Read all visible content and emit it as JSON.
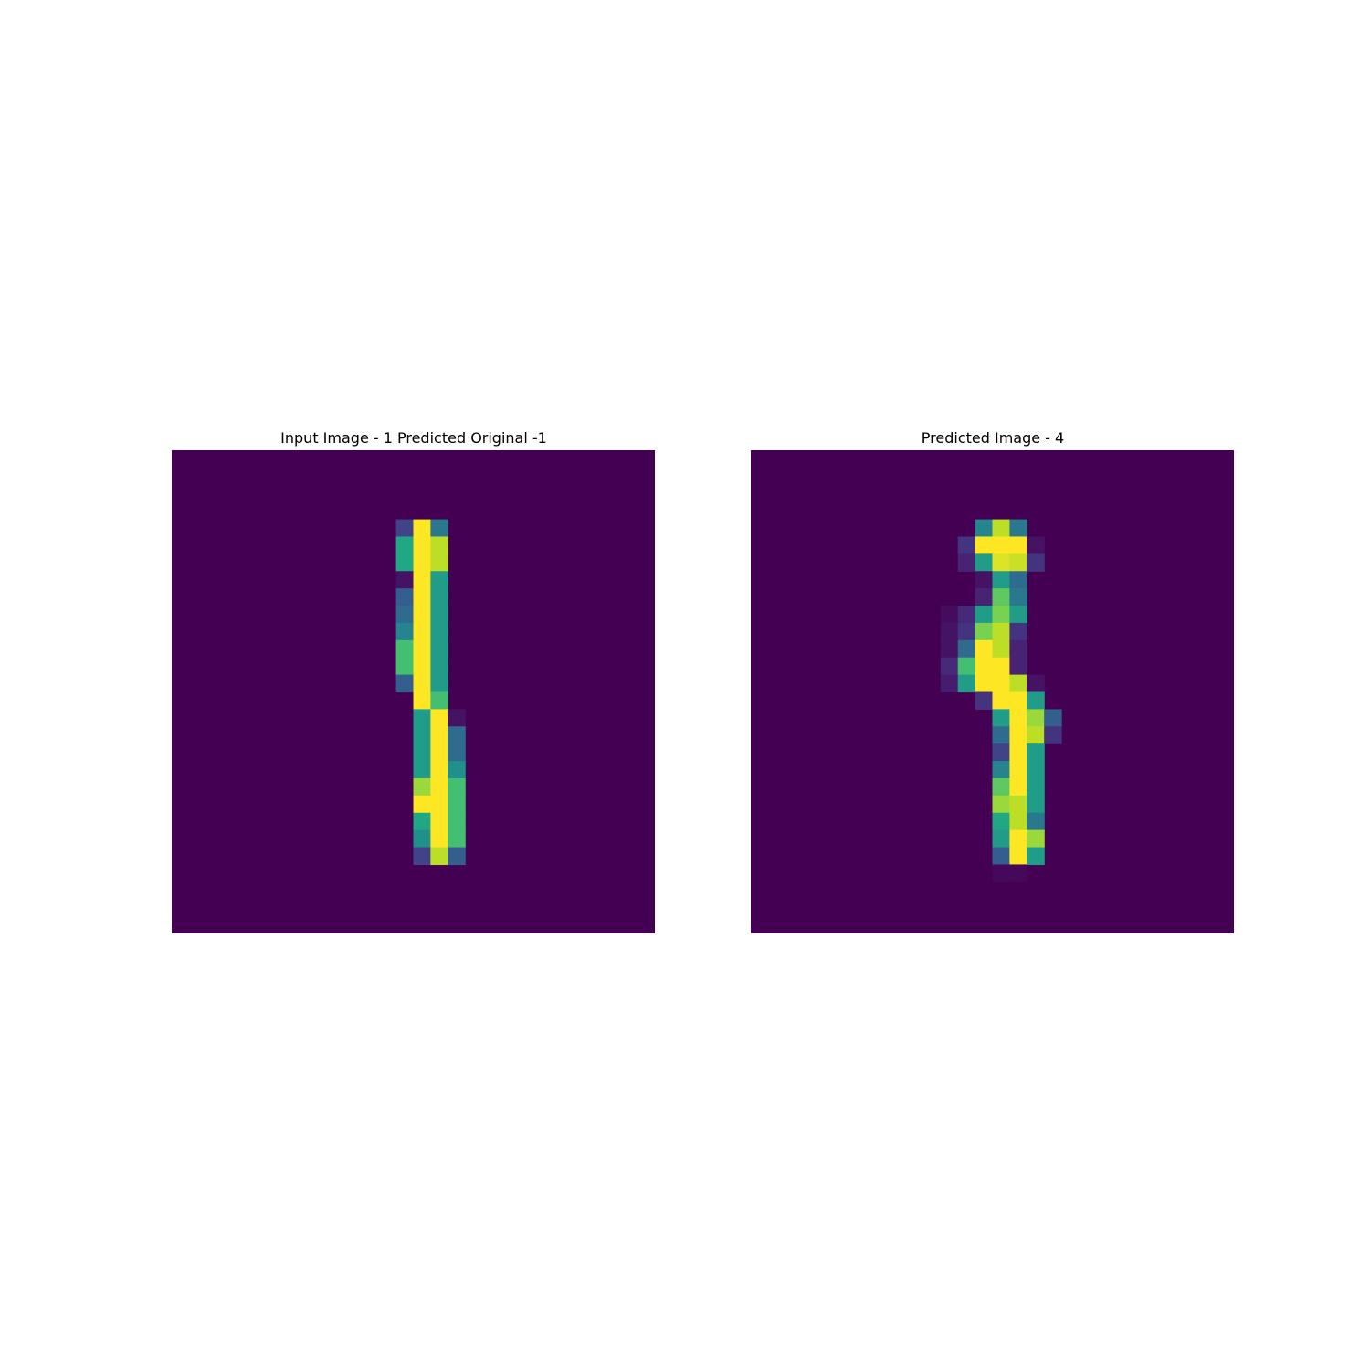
{
  "chart_data": [
    {
      "type": "heatmap",
      "title": "Input Image - 1 Predicted Original -1",
      "rows": 28,
      "cols": 28,
      "colormap": "viridis",
      "vmin": 0,
      "vmax": 1,
      "axis": "off",
      "cells": [
        [
          4,
          13,
          0.2
        ],
        [
          4,
          14,
          1.0
        ],
        [
          4,
          15,
          0.4
        ],
        [
          5,
          13,
          0.6
        ],
        [
          5,
          14,
          1.0
        ],
        [
          5,
          15,
          0.9
        ],
        [
          6,
          13,
          0.6
        ],
        [
          6,
          14,
          1.0
        ],
        [
          6,
          15,
          0.9
        ],
        [
          7,
          13,
          0.05
        ],
        [
          7,
          14,
          1.0
        ],
        [
          7,
          15,
          0.55
        ],
        [
          8,
          13,
          0.3
        ],
        [
          8,
          14,
          1.0
        ],
        [
          8,
          15,
          0.55
        ],
        [
          9,
          13,
          0.35
        ],
        [
          9,
          14,
          1.0
        ],
        [
          9,
          15,
          0.55
        ],
        [
          10,
          13,
          0.45
        ],
        [
          10,
          14,
          1.0
        ],
        [
          10,
          15,
          0.55
        ],
        [
          11,
          13,
          0.7
        ],
        [
          11,
          14,
          1.0
        ],
        [
          11,
          15,
          0.55
        ],
        [
          12,
          13,
          0.7
        ],
        [
          12,
          14,
          1.0
        ],
        [
          12,
          15,
          0.55
        ],
        [
          13,
          13,
          0.3
        ],
        [
          13,
          14,
          1.0
        ],
        [
          13,
          15,
          0.55
        ],
        [
          14,
          14,
          1.0
        ],
        [
          14,
          15,
          0.7
        ],
        [
          15,
          14,
          0.55
        ],
        [
          15,
          15,
          1.0
        ],
        [
          15,
          16,
          0.05
        ],
        [
          16,
          14,
          0.55
        ],
        [
          16,
          15,
          1.0
        ],
        [
          16,
          16,
          0.35
        ],
        [
          17,
          14,
          0.55
        ],
        [
          17,
          15,
          1.0
        ],
        [
          17,
          16,
          0.35
        ],
        [
          18,
          14,
          0.55
        ],
        [
          18,
          15,
          1.0
        ],
        [
          18,
          16,
          0.5
        ],
        [
          19,
          14,
          0.85
        ],
        [
          19,
          15,
          1.0
        ],
        [
          19,
          16,
          0.7
        ],
        [
          20,
          14,
          1.0
        ],
        [
          20,
          15,
          1.0
        ],
        [
          20,
          16,
          0.7
        ],
        [
          21,
          14,
          0.6
        ],
        [
          21,
          15,
          1.0
        ],
        [
          21,
          16,
          0.7
        ],
        [
          22,
          14,
          0.5
        ],
        [
          22,
          15,
          1.0
        ],
        [
          22,
          16,
          0.7
        ],
        [
          23,
          14,
          0.2
        ],
        [
          23,
          15,
          0.9
        ],
        [
          23,
          16,
          0.3
        ]
      ]
    },
    {
      "type": "heatmap",
      "title": "Predicted Image - 4",
      "rows": 28,
      "cols": 28,
      "colormap": "viridis",
      "vmin": 0,
      "vmax": 1,
      "axis": "off",
      "cells": [
        [
          4,
          13,
          0.45
        ],
        [
          4,
          14,
          0.9
        ],
        [
          4,
          15,
          0.4
        ],
        [
          5,
          12,
          0.15
        ],
        [
          5,
          13,
          1.0
        ],
        [
          5,
          14,
          1.0
        ],
        [
          5,
          15,
          1.0
        ],
        [
          5,
          16,
          0.05
        ],
        [
          6,
          12,
          0.1
        ],
        [
          6,
          13,
          0.55
        ],
        [
          6,
          14,
          0.95
        ],
        [
          6,
          15,
          0.92
        ],
        [
          6,
          16,
          0.15
        ],
        [
          7,
          13,
          0.05
        ],
        [
          7,
          14,
          0.55
        ],
        [
          7,
          15,
          0.35
        ],
        [
          8,
          13,
          0.1
        ],
        [
          8,
          14,
          0.75
        ],
        [
          8,
          15,
          0.4
        ],
        [
          9,
          11,
          0.03
        ],
        [
          9,
          12,
          0.12
        ],
        [
          9,
          13,
          0.55
        ],
        [
          9,
          14,
          0.8
        ],
        [
          9,
          15,
          0.55
        ],
        [
          10,
          11,
          0.05
        ],
        [
          10,
          12,
          0.15
        ],
        [
          10,
          13,
          0.8
        ],
        [
          10,
          14,
          0.9
        ],
        [
          10,
          15,
          0.15
        ],
        [
          11,
          11,
          0.05
        ],
        [
          11,
          12,
          0.35
        ],
        [
          11,
          13,
          1.0
        ],
        [
          11,
          14,
          0.9
        ],
        [
          11,
          15,
          0.1
        ],
        [
          12,
          11,
          0.12
        ],
        [
          12,
          12,
          0.7
        ],
        [
          12,
          13,
          1.0
        ],
        [
          12,
          14,
          1.0
        ],
        [
          12,
          15,
          0.1
        ],
        [
          13,
          11,
          0.08
        ],
        [
          13,
          12,
          0.55
        ],
        [
          13,
          13,
          1.0
        ],
        [
          13,
          14,
          1.0
        ],
        [
          13,
          15,
          0.9
        ],
        [
          13,
          16,
          0.05
        ],
        [
          14,
          13,
          0.15
        ],
        [
          14,
          14,
          1.0
        ],
        [
          14,
          15,
          1.0
        ],
        [
          14,
          16,
          0.55
        ],
        [
          15,
          14,
          0.55
        ],
        [
          15,
          15,
          1.0
        ],
        [
          15,
          16,
          0.85
        ],
        [
          15,
          17,
          0.3
        ],
        [
          16,
          14,
          0.35
        ],
        [
          16,
          15,
          1.0
        ],
        [
          16,
          16,
          0.9
        ],
        [
          16,
          17,
          0.15
        ],
        [
          17,
          14,
          0.2
        ],
        [
          17,
          15,
          1.0
        ],
        [
          17,
          16,
          0.55
        ],
        [
          18,
          14,
          0.45
        ],
        [
          18,
          15,
          1.0
        ],
        [
          18,
          16,
          0.55
        ],
        [
          19,
          14,
          0.75
        ],
        [
          19,
          15,
          1.0
        ],
        [
          19,
          16,
          0.55
        ],
        [
          20,
          14,
          0.85
        ],
        [
          20,
          15,
          0.9
        ],
        [
          20,
          16,
          0.55
        ],
        [
          21,
          14,
          0.6
        ],
        [
          21,
          15,
          0.9
        ],
        [
          21,
          16,
          0.4
        ],
        [
          22,
          14,
          0.55
        ],
        [
          22,
          15,
          1.0
        ],
        [
          22,
          16,
          0.85
        ],
        [
          23,
          14,
          0.3
        ],
        [
          23,
          15,
          1.0
        ],
        [
          23,
          16,
          0.55
        ],
        [
          24,
          14,
          0.02
        ],
        [
          24,
          15,
          0.02
        ]
      ]
    }
  ]
}
